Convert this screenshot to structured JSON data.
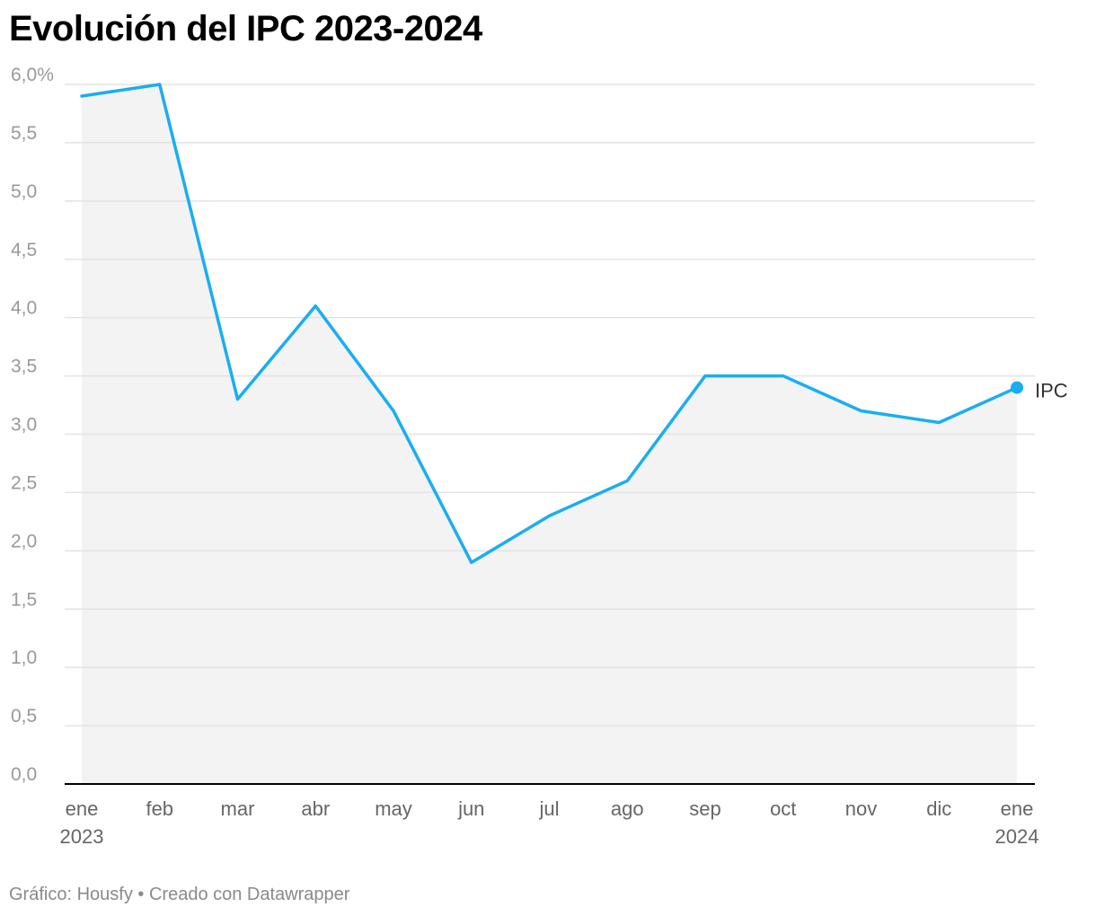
{
  "title": "Evolución del IPC 2023-2024",
  "footer": {
    "source_label": "Gráfico: Housfy",
    "separator": "•",
    "credit": "Creado con Datawrapper"
  },
  "chart_data": {
    "type": "area",
    "title": "Evolución del IPC 2023-2024",
    "xlabel": "",
    "ylabel": "",
    "x_tick_labels": [
      [
        "ene",
        "2023"
      ],
      [
        "feb"
      ],
      [
        "mar"
      ],
      [
        "abr"
      ],
      [
        "may"
      ],
      [
        "jun"
      ],
      [
        "jul"
      ],
      [
        "ago"
      ],
      [
        "sep"
      ],
      [
        "oct"
      ],
      [
        "nov"
      ],
      [
        "dic"
      ],
      [
        "ene",
        "2024"
      ]
    ],
    "y_ticks": [
      "0,0",
      "0,5",
      "1,0",
      "1,5",
      "2,0",
      "2,5",
      "3,0",
      "3,5",
      "4,0",
      "4,5",
      "5,0",
      "5,5",
      "6,0%"
    ],
    "ylim": [
      0,
      6
    ],
    "grid": true,
    "series": [
      {
        "name": "IPC",
        "color": "#1aaef0",
        "values": [
          5.9,
          6.0,
          3.3,
          4.1,
          3.2,
          1.9,
          2.3,
          2.6,
          3.5,
          3.5,
          3.2,
          3.1,
          3.4
        ]
      }
    ],
    "area_fill": "#f3f3f3"
  }
}
